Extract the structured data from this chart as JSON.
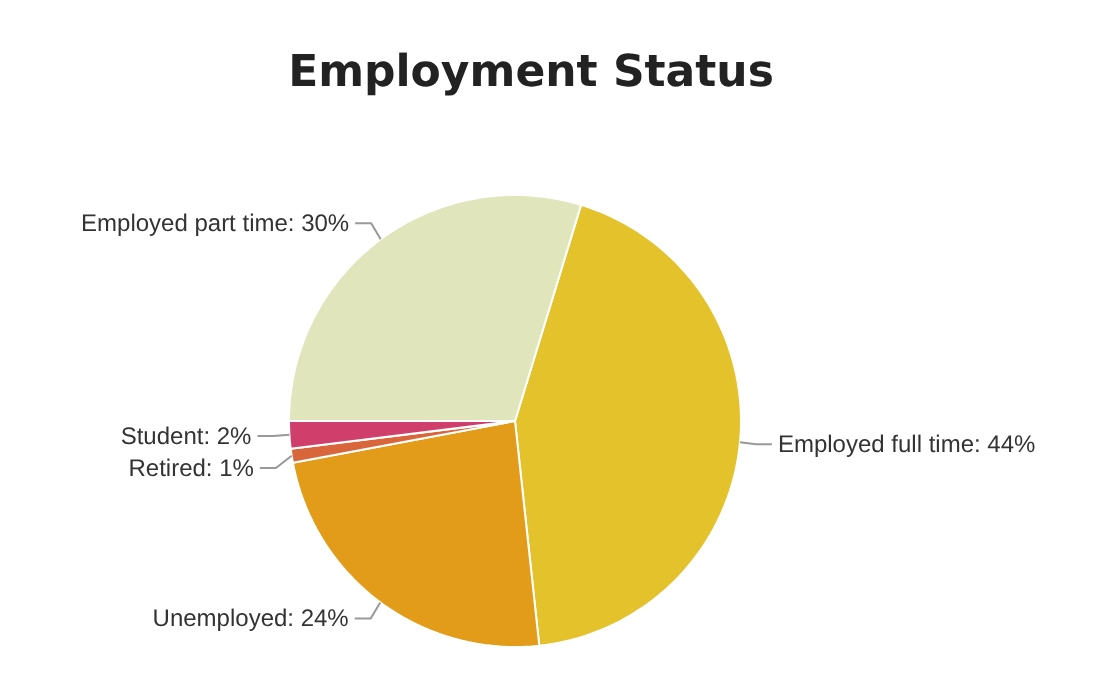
{
  "chart_data": {
    "type": "pie",
    "title": "Employment Status",
    "categories": [
      "Employed full time",
      "Unemployed",
      "Retired",
      "Student",
      "Employed part time"
    ],
    "values": [
      44,
      24,
      1,
      2,
      30
    ],
    "colors": [
      "#e3c22b",
      "#e39b1a",
      "#d9653b",
      "#d03f6b",
      "#e1e5bb"
    ],
    "value_labels": [
      "44%",
      "24%",
      "1%",
      "2%",
      "30%"
    ]
  }
}
